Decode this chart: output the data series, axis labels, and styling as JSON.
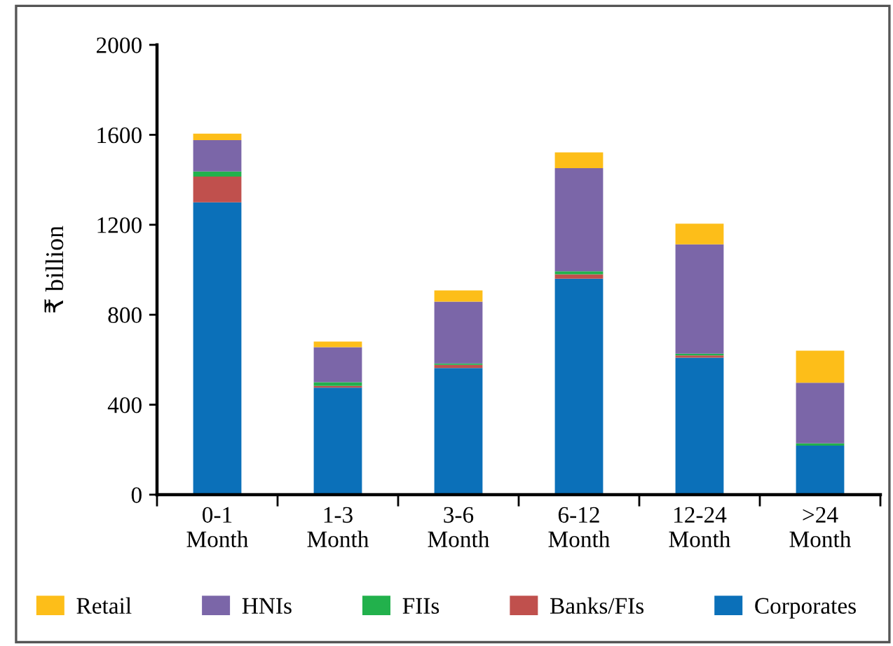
{
  "chart_data": {
    "type": "bar",
    "stacked": true,
    "ylabel": "₹ billion",
    "categories": [
      "0-1\nMonth",
      "1-3\nMonth",
      "3-6\nMonth",
      "6-12\nMonth",
      "12-24\nMonth",
      ">24\nMonth"
    ],
    "series": [
      {
        "name": "Corporates",
        "color": "#0b70b9",
        "values": [
          1300,
          476,
          563,
          960,
          609,
          218
        ]
      },
      {
        "name": "Banks/FIs",
        "color": "#c0504d",
        "values": [
          114,
          8,
          14,
          20,
          10,
          0
        ]
      },
      {
        "name": "FIIs",
        "color": "#22b14c",
        "values": [
          23,
          16,
          6,
          13,
          8,
          10
        ]
      },
      {
        "name": "HNIs",
        "color": "#7b66a8",
        "values": [
          139,
          156,
          275,
          459,
          486,
          270
        ]
      },
      {
        "name": "Retail",
        "color": "#fdbe19",
        "values": [
          29,
          25,
          50,
          70,
          92,
          142
        ]
      }
    ],
    "ylim": [
      0,
      2000
    ],
    "yticks": [
      0,
      400,
      800,
      1200,
      1600,
      2000
    ],
    "grid": false,
    "legend": "bottom"
  }
}
